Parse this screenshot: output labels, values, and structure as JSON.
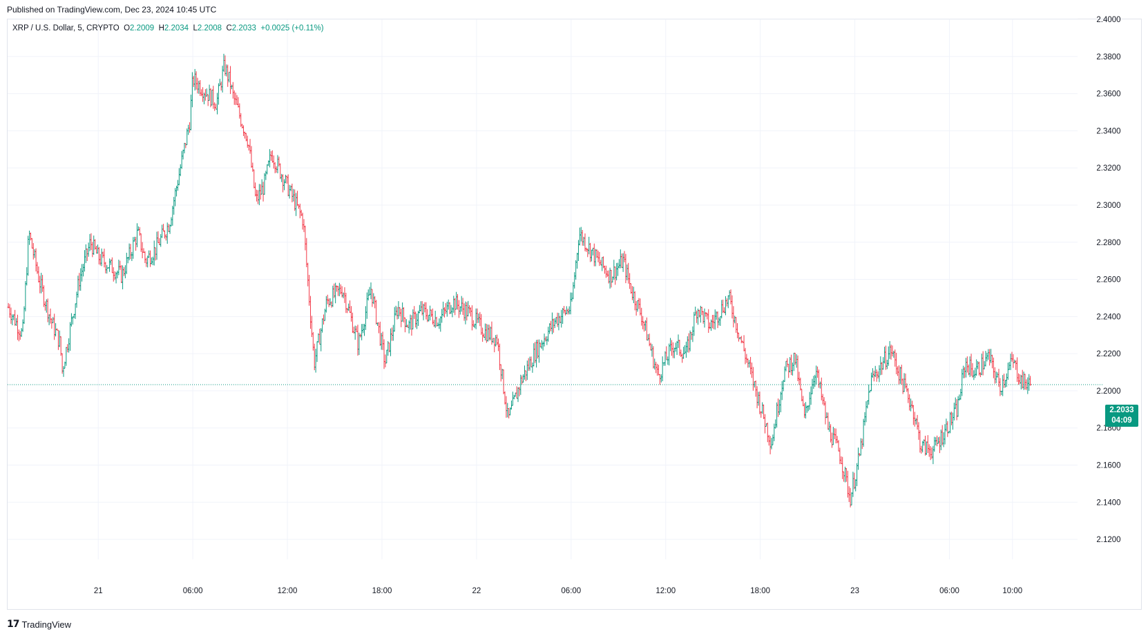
{
  "header": {
    "published": "Published on TradingView.com, Dec 23, 2024 10:45 UTC"
  },
  "legend": {
    "symbol": "XRP / U.S. Dollar, 5, CRYPTO",
    "open_label": "O",
    "open": "2.2009",
    "high_label": "H",
    "high": "2.2034",
    "low_label": "L",
    "low": "2.2008",
    "close_label": "C",
    "close": "2.2033",
    "change": "+0.0025 (+0.11%)"
  },
  "price_tag": {
    "price": "2.2033",
    "countdown": "04:09"
  },
  "brand": {
    "logo": "17",
    "name": "TradingView"
  },
  "colors": {
    "up": "#089981",
    "down": "#f23645",
    "grid": "#f0f3fa",
    "text": "#131722"
  },
  "chart_data": {
    "type": "ohlc-bar",
    "symbol": "XRP / U.S. Dollar",
    "interval": "5",
    "ylim": [
      2.11,
      2.4
    ],
    "y_ticks": [
      "2.4000",
      "2.3800",
      "2.3600",
      "2.3400",
      "2.3200",
      "2.3000",
      "2.2800",
      "2.2600",
      "2.2400",
      "2.2200",
      "2.2000",
      "2.1800",
      "2.1600",
      "2.1400",
      "2.1200"
    ],
    "x_ticks": [
      "21",
      "06:00",
      "12:00",
      "18:00",
      "22",
      "06:00",
      "12:00",
      "18:00",
      "23",
      "06:00",
      "10:00"
    ],
    "x_tick_hours": [
      9,
      15,
      21,
      27,
      33,
      39,
      45,
      51,
      57,
      63,
      67
    ],
    "x_range_hours": [
      3.25,
      68.5
    ],
    "last_price": 2.2033,
    "path_hours": [
      3.3,
      4.2,
      4.6,
      5.3,
      6.0,
      6.6,
      6.7,
      7.8,
      8.5,
      9.0,
      10.5,
      11.5,
      12.0,
      12.6,
      13.5,
      14.8,
      15.0,
      16.5,
      17.0,
      17.4,
      17.5,
      18.5,
      19.0,
      19.5,
      20.0,
      21.0,
      22.0,
      22.7,
      23.5,
      24.5,
      25.5,
      26.3,
      27.2,
      28.0,
      28.7,
      29.5,
      30.6,
      31.5,
      32.5,
      33.5,
      34.3,
      35.0,
      35.8,
      36.8,
      38.0,
      39.0,
      39.5,
      40.7,
      41.5,
      42.3,
      42.8,
      43.5,
      44.5,
      45.5,
      46.3,
      47.0,
      47.8,
      49.0,
      50.2,
      51.7,
      52.5,
      53.2,
      53.8,
      54.5,
      55.3,
      56.1,
      56.7,
      57.3,
      58.0,
      59.3,
      60.0,
      60.7,
      61.2,
      62.0,
      62.8,
      63.5,
      64.0,
      64.6,
      65.5,
      66.2,
      67.0,
      67.6,
      68.2
    ],
    "path_closes": [
      2.245,
      2.23,
      2.285,
      2.258,
      2.238,
      2.225,
      2.21,
      2.26,
      2.28,
      2.272,
      2.262,
      2.285,
      2.27,
      2.276,
      2.29,
      2.345,
      2.368,
      2.355,
      2.375,
      2.365,
      2.36,
      2.335,
      2.302,
      2.31,
      2.328,
      2.31,
      2.292,
      2.215,
      2.248,
      2.255,
      2.225,
      2.255,
      2.215,
      2.245,
      2.235,
      2.243,
      2.238,
      2.248,
      2.242,
      2.232,
      2.228,
      2.184,
      2.205,
      2.222,
      2.238,
      2.245,
      2.285,
      2.27,
      2.262,
      2.27,
      2.255,
      2.24,
      2.208,
      2.225,
      2.22,
      2.245,
      2.235,
      2.25,
      2.215,
      2.172,
      2.21,
      2.218,
      2.185,
      2.212,
      2.18,
      2.165,
      2.142,
      2.165,
      2.205,
      2.222,
      2.205,
      2.19,
      2.17,
      2.168,
      2.18,
      2.19,
      2.215,
      2.21,
      2.218,
      2.202,
      2.216,
      2.205,
      2.203
    ]
  }
}
